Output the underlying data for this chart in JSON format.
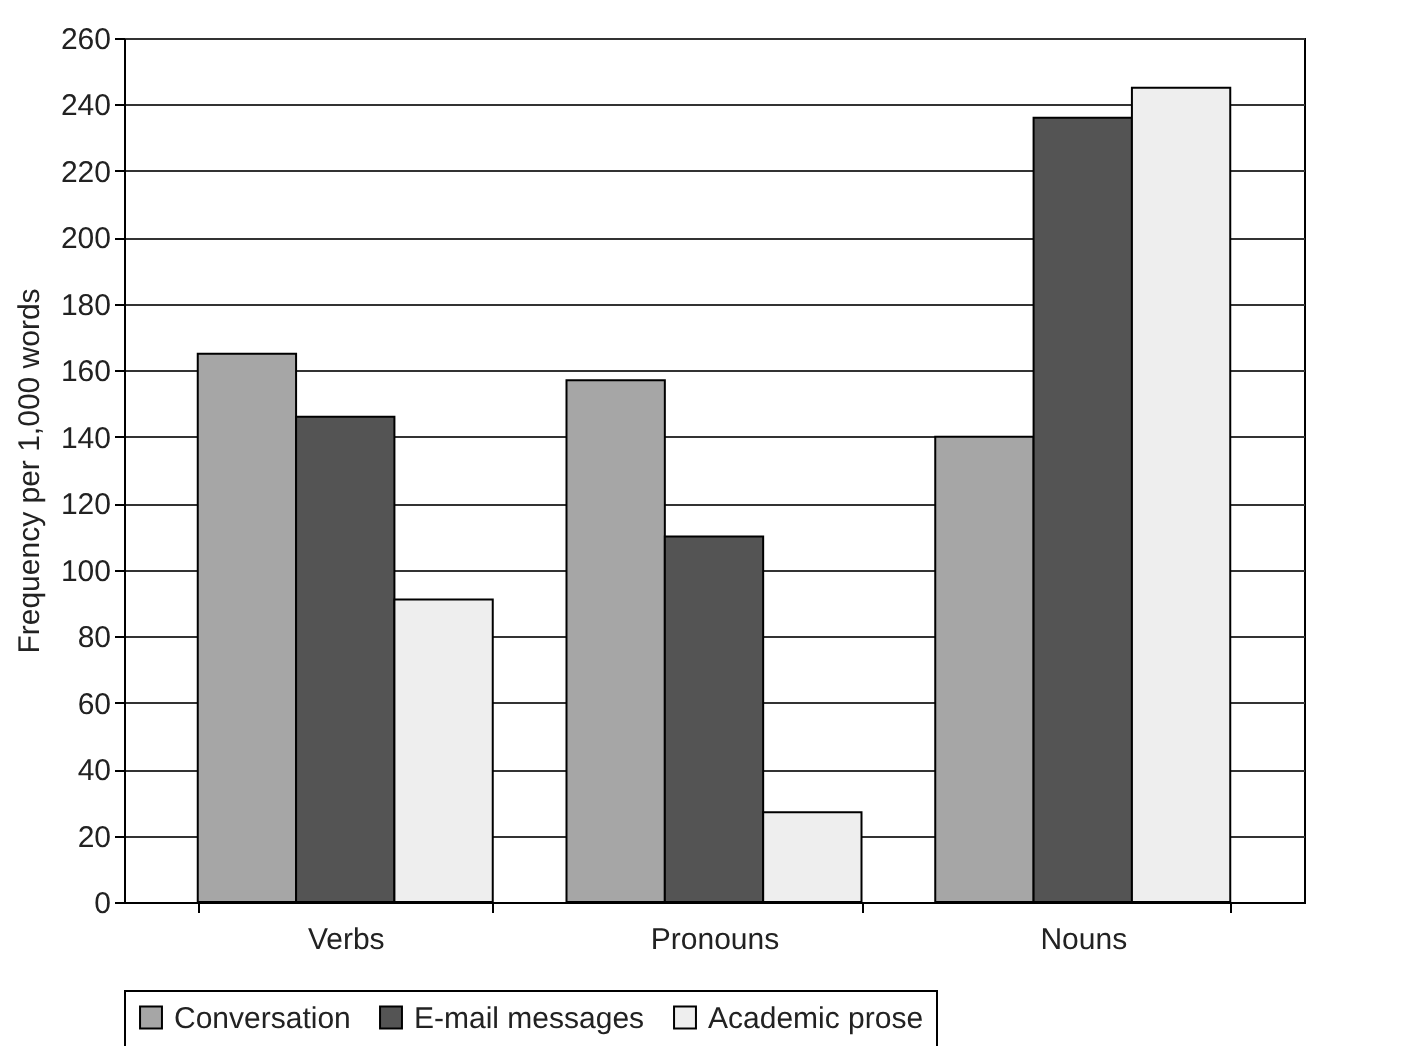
{
  "chart_data": {
    "type": "bar",
    "ylabel": "Frequency per 1,000 words",
    "categories": [
      "Verbs",
      "Pronouns",
      "Nouns"
    ],
    "series": [
      {
        "name": "Conversation",
        "color": "#a6a6a6",
        "values": [
          165,
          157,
          140
        ]
      },
      {
        "name": "E-mail messages",
        "color": "#545454",
        "values": [
          146,
          110,
          236
        ]
      },
      {
        "name": "Academic prose",
        "color": "#eeeeee",
        "values": [
          91,
          27,
          245
        ]
      }
    ],
    "ylim": [
      0,
      260
    ],
    "yticks": [
      0,
      20,
      40,
      60,
      80,
      100,
      120,
      140,
      160,
      180,
      200,
      220,
      240,
      260
    ],
    "grid": "y",
    "legend": "bottom"
  }
}
